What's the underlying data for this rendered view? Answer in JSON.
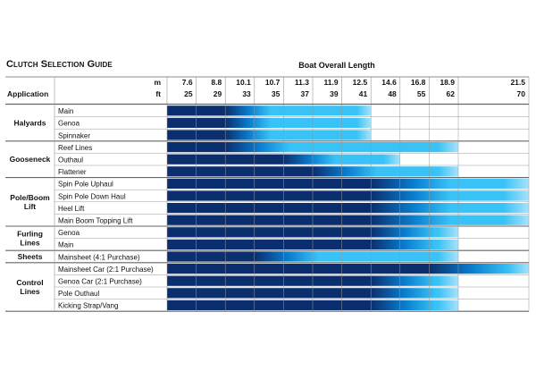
{
  "title": "Clutch Selection Guide",
  "header": {
    "boat_length_title": "Boat Overall Length",
    "application_label": "Application",
    "m_unit": "m",
    "ft_unit": "ft"
  },
  "chart_data": {
    "type": "table",
    "title": "Clutch Selection Guide",
    "xlabel": "Boat Overall Length",
    "columns_m": [
      "7.6",
      "8.8",
      "10.1",
      "10.7",
      "11.3",
      "11.9",
      "12.5",
      "14.6",
      "16.8",
      "18.9",
      "21.5"
    ],
    "columns_ft": [
      "25",
      "29",
      "33",
      "35",
      "37",
      "39",
      "41",
      "48",
      "55",
      "62",
      "70"
    ],
    "groups": [
      {
        "name": "Halyards",
        "rows": [
          {
            "label": "Main",
            "fill_to_ft": 41,
            "fade_start_ft": 29
          },
          {
            "label": "Genoa",
            "fill_to_ft": 41,
            "fade_start_ft": 29
          },
          {
            "label": "Spinnaker",
            "fill_to_ft": 41,
            "fade_start_ft": 29
          }
        ]
      },
      {
        "name": "Gooseneck",
        "rows": [
          {
            "label": "Reef Lines",
            "fill_to_ft": 62,
            "fade_start_ft": 29
          },
          {
            "label": "Outhaul",
            "fill_to_ft": 48,
            "fade_start_ft": 35
          },
          {
            "label": "Flattener",
            "fill_to_ft": 62,
            "fade_start_ft": 37
          }
        ]
      },
      {
        "name": "Pole/Boom Lift",
        "rows": [
          {
            "label": "Spin Pole Uphaul",
            "fill_to_ft": 70,
            "fade_start_ft": 41
          },
          {
            "label": "Spin Pole Down Haul",
            "fill_to_ft": 70,
            "fade_start_ft": 41
          },
          {
            "label": "Heel Lift",
            "fill_to_ft": 70,
            "fade_start_ft": 41
          },
          {
            "label": "Main Boom Topping Lift",
            "fill_to_ft": 70,
            "fade_start_ft": 41
          }
        ]
      },
      {
        "name": "Furling Lines",
        "rows": [
          {
            "label": "Genoa",
            "fill_to_ft": 62,
            "fade_start_ft": 41
          },
          {
            "label": "Main",
            "fill_to_ft": 62,
            "fade_start_ft": 41
          }
        ]
      },
      {
        "name": "Sheets",
        "rows": [
          {
            "label": "Mainsheet (4:1 Purchase)",
            "fill_to_ft": 62,
            "fade_start_ft": 33
          }
        ]
      },
      {
        "name": "Control Lines",
        "rows": [
          {
            "label": "Mainsheet Car (2:1 Purchase)",
            "fill_to_ft": 70,
            "fade_start_ft": 55
          },
          {
            "label": "Genoa Car (2:1 Purchase)",
            "fill_to_ft": 62,
            "fade_start_ft": 41
          },
          {
            "label": "Pole Outhaul",
            "fill_to_ft": 62,
            "fade_start_ft": 41
          },
          {
            "label": "Kicking Strap/Vang",
            "fill_to_ft": 62,
            "fade_start_ft": 41
          }
        ]
      }
    ],
    "colors": {
      "dark": "#0b2f6e",
      "mid": "#0a7fd0",
      "light": "#38c2f5",
      "pale": "#a8e2fb",
      "grid": "#9a9a9a",
      "border": "#666666"
    }
  }
}
